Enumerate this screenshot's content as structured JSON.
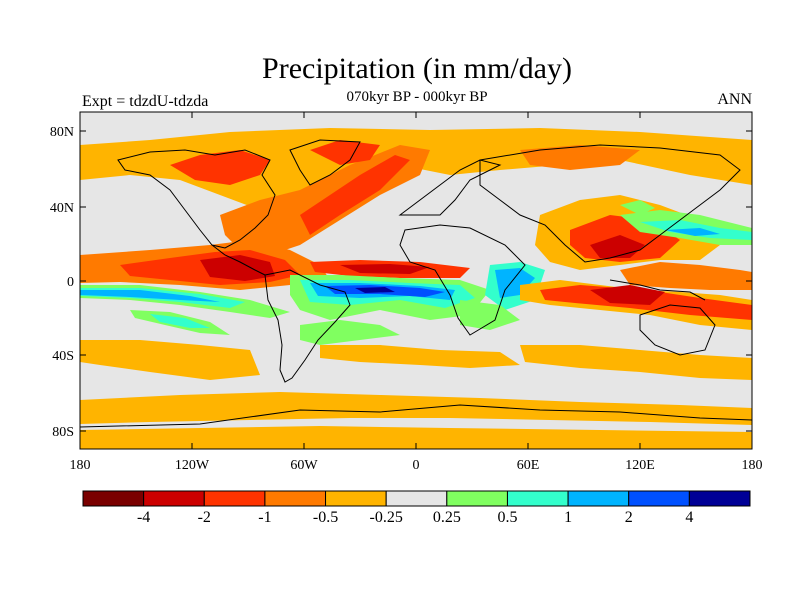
{
  "title": "Precipitation (in mm/day)",
  "subtitle": "070kyr BP - 000kyr BP",
  "left_label": "Expt = tdzdU-tdzda",
  "right_label": "ANN",
  "lat_labels": [
    "80N",
    "40N",
    "0",
    "40S",
    "80S"
  ],
  "lon_labels": [
    "180",
    "120W",
    "60W",
    "0",
    "60E",
    "120E",
    "180"
  ],
  "colorbar": {
    "colors": [
      "#7a0000",
      "#cc0000",
      "#ff3300",
      "#ff7a00",
      "#ffb400",
      "#e6e6e6",
      "#80ff60",
      "#33ffcc",
      "#00b4ff",
      "#0050ff",
      "#000096"
    ],
    "labels": [
      "-4",
      "-2",
      "-1",
      "-0.5",
      "-0.25",
      "0.25",
      "0.5",
      "1",
      "2",
      "4"
    ]
  },
  "colors": {
    "background": "#e6e6e6",
    "frame": "#000000",
    "coast": "#000000"
  }
}
